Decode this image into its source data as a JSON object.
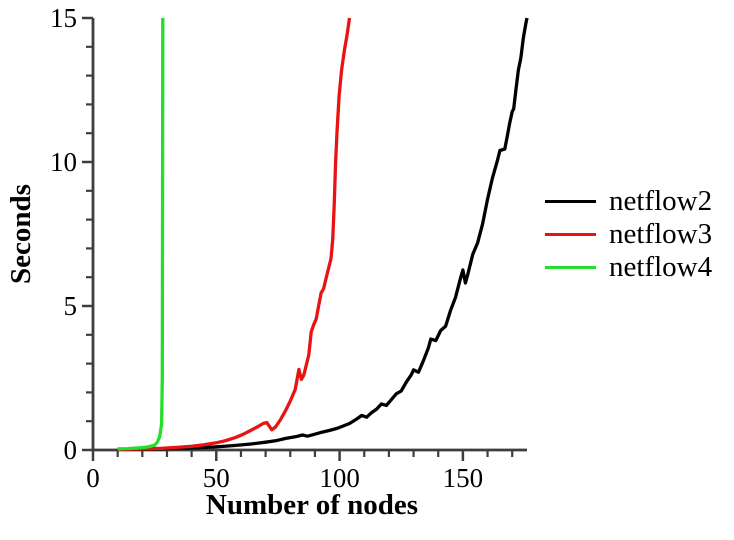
{
  "chart_data": {
    "type": "line",
    "title": "",
    "xlabel": "Number of nodes",
    "ylabel": "Seconds",
    "xlim": [
      0,
      176
    ],
    "ylim": [
      0,
      15
    ],
    "grid": false,
    "legend_position": "right-center",
    "colors": {
      "axis": "#3e3e3e",
      "text": "#000000",
      "background": "#ffffff"
    },
    "x_ticks": [
      {
        "value": 0,
        "label": "0"
      },
      {
        "value": 50,
        "label": "50"
      },
      {
        "value": 100,
        "label": "100"
      },
      {
        "value": 150,
        "label": "150"
      }
    ],
    "x_minor_ticks": [
      10,
      20,
      30,
      40,
      60,
      70,
      80,
      90,
      110,
      120,
      130,
      140,
      160,
      170
    ],
    "y_ticks": [
      {
        "value": 0,
        "label": "0"
      },
      {
        "value": 5,
        "label": "5"
      },
      {
        "value": 10,
        "label": "10"
      },
      {
        "value": 15,
        "label": "15"
      }
    ],
    "y_minor_ticks": [
      1,
      2,
      3,
      4,
      6,
      7,
      8,
      9,
      11,
      12,
      13,
      14
    ],
    "series": [
      {
        "name": "netflow2",
        "color": "#000000",
        "points": [
          [
            10,
            0.02
          ],
          [
            20,
            0.03
          ],
          [
            30,
            0.05
          ],
          [
            40,
            0.07
          ],
          [
            46,
            0.09
          ],
          [
            52,
            0.12
          ],
          [
            58,
            0.16
          ],
          [
            64,
            0.21
          ],
          [
            70,
            0.27
          ],
          [
            74,
            0.32
          ],
          [
            78,
            0.4
          ],
          [
            82,
            0.46
          ],
          [
            85,
            0.52
          ],
          [
            87,
            0.48
          ],
          [
            90,
            0.55
          ],
          [
            93,
            0.62
          ],
          [
            96,
            0.68
          ],
          [
            99,
            0.75
          ],
          [
            102,
            0.85
          ],
          [
            104,
            0.92
          ],
          [
            107,
            1.08
          ],
          [
            109,
            1.2
          ],
          [
            111,
            1.14
          ],
          [
            113,
            1.3
          ],
          [
            115,
            1.42
          ],
          [
            117,
            1.6
          ],
          [
            119,
            1.55
          ],
          [
            121,
            1.75
          ],
          [
            123,
            1.95
          ],
          [
            125,
            2.05
          ],
          [
            127,
            2.35
          ],
          [
            129,
            2.6
          ],
          [
            130,
            2.78
          ],
          [
            132,
            2.7
          ],
          [
            134,
            3.1
          ],
          [
            136,
            3.55
          ],
          [
            137,
            3.85
          ],
          [
            139,
            3.8
          ],
          [
            141,
            4.15
          ],
          [
            143,
            4.3
          ],
          [
            145,
            4.85
          ],
          [
            147,
            5.3
          ],
          [
            149,
            5.95
          ],
          [
            150,
            6.25
          ],
          [
            151,
            5.8
          ],
          [
            152,
            6.1
          ],
          [
            154,
            6.8
          ],
          [
            156,
            7.2
          ],
          [
            158,
            7.85
          ],
          [
            160,
            8.7
          ],
          [
            162,
            9.45
          ],
          [
            164,
            10.05
          ],
          [
            165,
            10.4
          ],
          [
            167,
            10.45
          ],
          [
            168,
            10.9
          ],
          [
            169,
            11.35
          ],
          [
            170,
            11.75
          ],
          [
            170.6,
            11.85
          ],
          [
            171.5,
            12.5
          ],
          [
            172.5,
            13.2
          ],
          [
            173.5,
            13.6
          ],
          [
            174.5,
            14.3
          ],
          [
            175.5,
            14.8
          ],
          [
            176,
            15
          ]
        ]
      },
      {
        "name": "netflow3",
        "color": "#e81414",
        "points": [
          [
            10,
            0.02
          ],
          [
            20,
            0.04
          ],
          [
            28,
            0.06
          ],
          [
            34,
            0.09
          ],
          [
            40,
            0.13
          ],
          [
            45,
            0.18
          ],
          [
            50,
            0.25
          ],
          [
            54,
            0.33
          ],
          [
            58,
            0.44
          ],
          [
            61,
            0.55
          ],
          [
            64,
            0.68
          ],
          [
            67,
            0.82
          ],
          [
            69,
            0.92
          ],
          [
            70.5,
            0.95
          ],
          [
            72.5,
            0.7
          ],
          [
            74,
            0.8
          ],
          [
            76,
            1.05
          ],
          [
            78,
            1.35
          ],
          [
            80,
            1.7
          ],
          [
            82,
            2.1
          ],
          [
            83.5,
            2.8
          ],
          [
            84.5,
            2.45
          ],
          [
            85.5,
            2.6
          ],
          [
            86.5,
            2.95
          ],
          [
            87.5,
            3.3
          ],
          [
            88.5,
            4.1
          ],
          [
            89.5,
            4.35
          ],
          [
            90.5,
            4.55
          ],
          [
            91.5,
            5.0
          ],
          [
            92.5,
            5.45
          ],
          [
            93.5,
            5.6
          ],
          [
            94.5,
            5.95
          ],
          [
            95.5,
            6.3
          ],
          [
            96.5,
            6.65
          ],
          [
            97.2,
            7.3
          ],
          [
            97.8,
            8.5
          ],
          [
            98.4,
            10.0
          ],
          [
            99,
            11.1
          ],
          [
            99.8,
            12.3
          ],
          [
            100.8,
            13.2
          ],
          [
            102,
            13.9
          ],
          [
            103,
            14.4
          ],
          [
            104,
            15
          ]
        ]
      },
      {
        "name": "netflow4",
        "color": "#23df2c",
        "points": [
          [
            10,
            0.04
          ],
          [
            14,
            0.05
          ],
          [
            18,
            0.07
          ],
          [
            21,
            0.09
          ],
          [
            23,
            0.12
          ],
          [
            25,
            0.17
          ],
          [
            26,
            0.26
          ],
          [
            27,
            0.45
          ],
          [
            27.8,
            0.9
          ],
          [
            28.1,
            2.5
          ],
          [
            28.3,
            15
          ]
        ]
      }
    ]
  }
}
